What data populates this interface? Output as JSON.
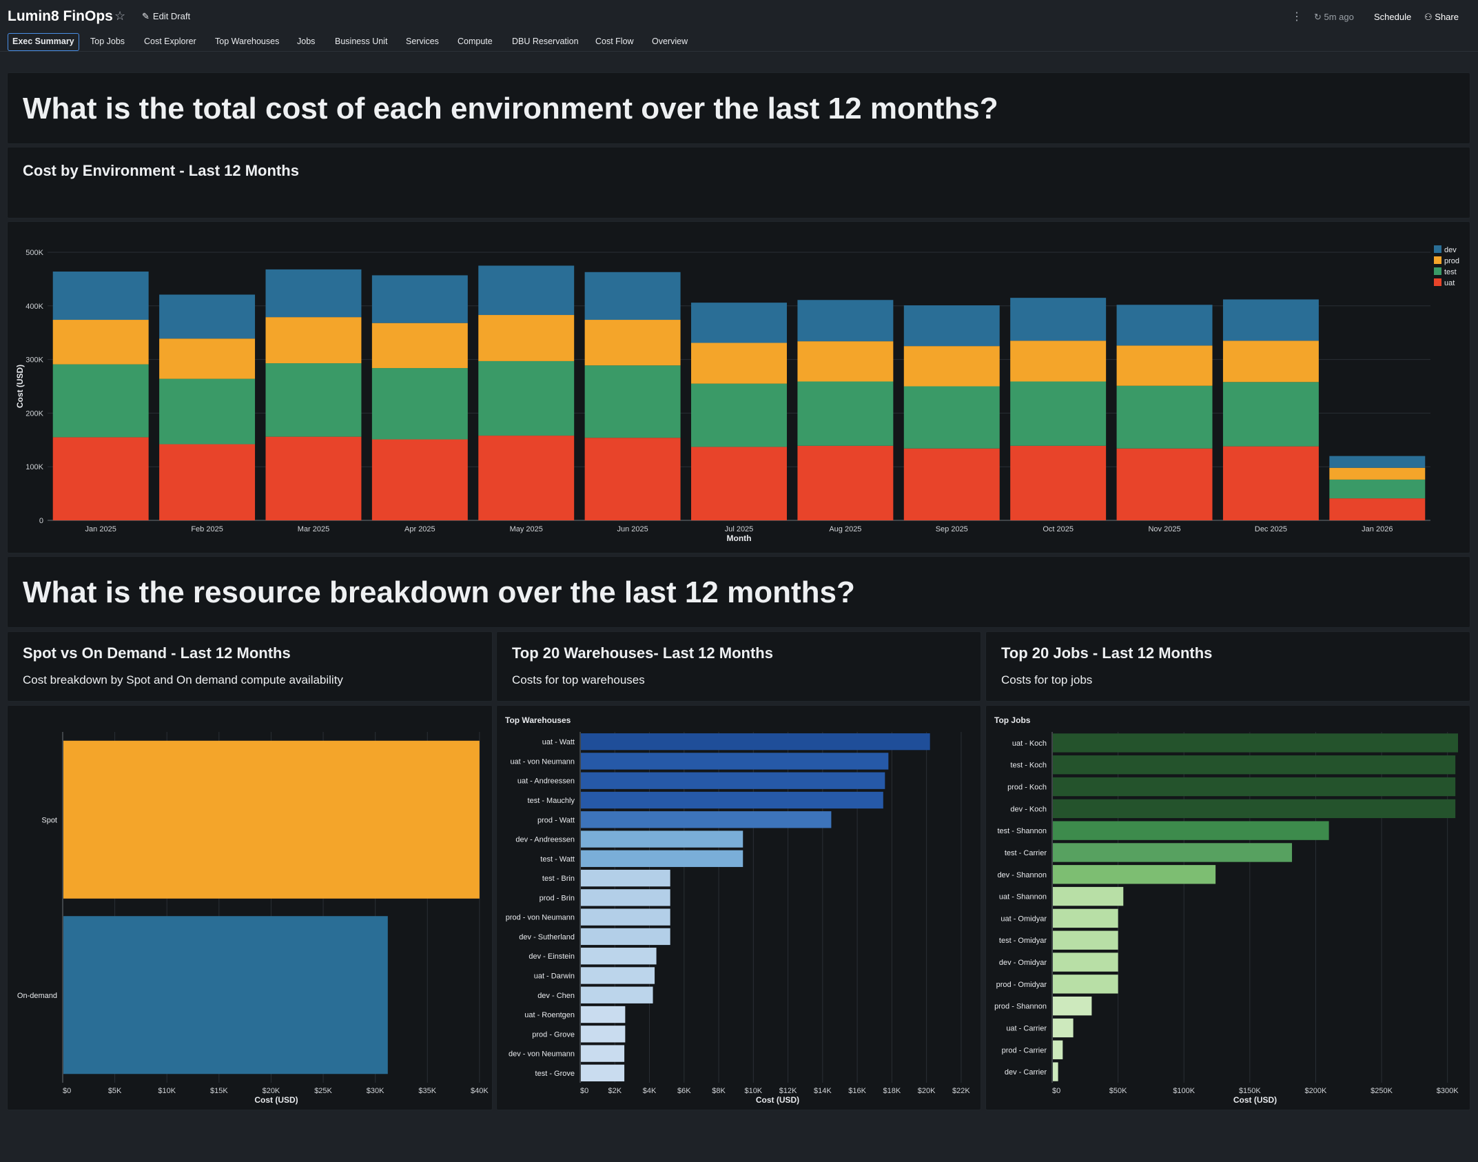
{
  "app": {
    "title": "Lumin8 FinOps",
    "edit_draft_label": "Edit Draft",
    "refresh_label": "5m ago",
    "schedule_label": "Schedule",
    "share_label": "Share"
  },
  "tabs": [
    {
      "label": "Exec Summary",
      "active": true
    },
    {
      "label": "Top Jobs"
    },
    {
      "label": "Cost Explorer"
    },
    {
      "label": "Top Warehouses"
    },
    {
      "label": "Jobs"
    },
    {
      "label": "Business Unit"
    },
    {
      "label": "Services"
    },
    {
      "label": "Compute"
    },
    {
      "label": "DBU Reservation"
    },
    {
      "label": "Cost Flow"
    },
    {
      "label": "Overview"
    }
  ],
  "sections": {
    "q1": "What is the total cost of each environment over the last 12 months?",
    "q2": "What is the resource breakdown over the last 12 months?"
  },
  "env_panel": {
    "title": "Cost by Environment - Last 12 Months"
  },
  "spot_panel": {
    "title": "Spot vs On Demand - Last 12 Months",
    "subtitle": "Cost breakdown by Spot and On demand compute availability"
  },
  "wh_panel": {
    "title": "Top 20 Warehouses- Last 12 Months",
    "subtitle": "Costs for top warehouses"
  },
  "jobs_panel": {
    "title": "Top 20 Jobs - Last 12 Months",
    "subtitle": "Costs for top jobs"
  },
  "chart_data": [
    {
      "id": "env",
      "type": "bar",
      "stacked": true,
      "xlabel": "Month",
      "ylabel": "Cost (USD)",
      "ylim": [
        0,
        500000
      ],
      "yticks": [
        0,
        100000,
        200000,
        300000,
        400000,
        500000
      ],
      "ytick_labels": [
        "0",
        "100K",
        "200K",
        "300K",
        "400K",
        "500K"
      ],
      "grid": true,
      "legend": "top-right",
      "categories": [
        "Jan 2025",
        "Feb 2025",
        "Mar 2025",
        "Apr 2025",
        "May 2025",
        "Jun 2025",
        "Jul 2025",
        "Aug 2025",
        "Sep 2025",
        "Oct 2025",
        "Nov 2025",
        "Dec 2025",
        "Jan 2026"
      ],
      "series": [
        {
          "name": "uat",
          "color": "#e8442a",
          "values": [
            155000,
            142000,
            156000,
            151000,
            158000,
            154000,
            137000,
            139000,
            134000,
            139000,
            134000,
            138000,
            41000
          ]
        },
        {
          "name": "test",
          "color": "#3a9a67",
          "values": [
            136000,
            122000,
            137000,
            133000,
            139000,
            135000,
            118000,
            120000,
            116000,
            120000,
            117000,
            120000,
            35000
          ]
        },
        {
          "name": "prod",
          "color": "#f4a52a",
          "values": [
            83000,
            75000,
            86000,
            84000,
            86000,
            85000,
            76000,
            75000,
            75000,
            76000,
            75000,
            77000,
            22000
          ]
        },
        {
          "name": "dev",
          "color": "#2a6e96",
          "values": [
            90000,
            82000,
            89000,
            89000,
            92000,
            89000,
            75000,
            77000,
            76000,
            80000,
            76000,
            77000,
            22000
          ]
        }
      ]
    },
    {
      "id": "spot",
      "type": "bar",
      "orientation": "horizontal",
      "xlabel": "Cost (USD)",
      "xlim": [
        0,
        41000
      ],
      "xticks": [
        0,
        5000,
        10000,
        15000,
        20000,
        25000,
        30000,
        35000,
        40000
      ],
      "xtick_labels": [
        "$0",
        "$5K",
        "$10K",
        "$15K",
        "$20K",
        "$25K",
        "$30K",
        "$35K",
        "$40K"
      ],
      "grid": true,
      "categories": [
        "Spot",
        "On-demand"
      ],
      "values": [
        40000,
        31200
      ],
      "colors": [
        "#f4a52a",
        "#2a6e96"
      ]
    },
    {
      "id": "warehouses",
      "type": "bar",
      "orientation": "horizontal",
      "title": "Top Warehouses",
      "xlabel": "Cost (USD)",
      "xlim": [
        0,
        22800
      ],
      "xticks": [
        0,
        2000,
        4000,
        6000,
        8000,
        10000,
        12000,
        14000,
        16000,
        18000,
        20000,
        22000
      ],
      "xtick_labels": [
        "$0",
        "$2K",
        "$4K",
        "$6K",
        "$8K",
        "$10K",
        "$12K",
        "$14K",
        "$16K",
        "$18K",
        "$20K",
        "$22K"
      ],
      "grid": true,
      "categories": [
        "uat - Watt",
        "uat - von Neumann",
        "uat - Andreessen",
        "test - Mauchly",
        "prod - Watt",
        "dev - Andreessen",
        "test - Watt",
        "test - Brin",
        "prod - Brin",
        "prod - von Neumann",
        "dev - Sutherland",
        "dev - Einstein",
        "uat - Darwin",
        "dev - Chen",
        "uat - Roentgen",
        "prod - Grove",
        "dev - von Neumann",
        "test - Grove"
      ],
      "values": [
        20200,
        17800,
        17600,
        17500,
        14500,
        9400,
        9400,
        5200,
        5200,
        5200,
        5200,
        4400,
        4300,
        4200,
        2600,
        2600,
        2550,
        2550
      ],
      "colors": [
        "#1f4e99",
        "#2659a8",
        "#2659a8",
        "#2659a8",
        "#3d74bb",
        "#7aaed8",
        "#7aaed8",
        "#b3cfe8",
        "#b3cfe8",
        "#b3cfe8",
        "#b3cfe8",
        "#bcd5eb",
        "#bcd5eb",
        "#bcd5eb",
        "#c9dcef",
        "#c9dcef",
        "#c9dcef",
        "#c9dcef"
      ]
    },
    {
      "id": "jobs",
      "type": "bar",
      "orientation": "horizontal",
      "title": "Top Jobs",
      "xlabel": "Cost (USD)",
      "xlim": [
        0,
        308000
      ],
      "xticks": [
        0,
        50000,
        100000,
        150000,
        200000,
        250000,
        300000
      ],
      "xtick_labels": [
        "$0",
        "$50K",
        "$100K",
        "$150K",
        "$200K",
        "$250K",
        "$300K"
      ],
      "grid": true,
      "categories": [
        "uat - Koch",
        "test - Koch",
        "prod - Koch",
        "dev - Koch",
        "test - Shannon",
        "test - Carrier",
        "dev - Shannon",
        "uat - Shannon",
        "uat - Omidyar",
        "test - Omidyar",
        "dev - Omidyar",
        "prod - Omidyar",
        "prod - Shannon",
        "uat - Carrier",
        "prod - Carrier",
        "dev - Carrier"
      ],
      "values": [
        308000,
        306000,
        306000,
        306000,
        210000,
        182000,
        124000,
        54000,
        50000,
        50000,
        50000,
        50000,
        30000,
        16000,
        8000,
        4500
      ],
      "colors": [
        "#24532c",
        "#24532c",
        "#24532c",
        "#24532c",
        "#3d8b4c",
        "#57a160",
        "#7dbe72",
        "#b8dfa6",
        "#b8dfa6",
        "#b8dfa6",
        "#b8dfa6",
        "#b8dfa6",
        "#cde9bd",
        "#cde9bd",
        "#cde9bd",
        "#cde9bd"
      ]
    }
  ]
}
